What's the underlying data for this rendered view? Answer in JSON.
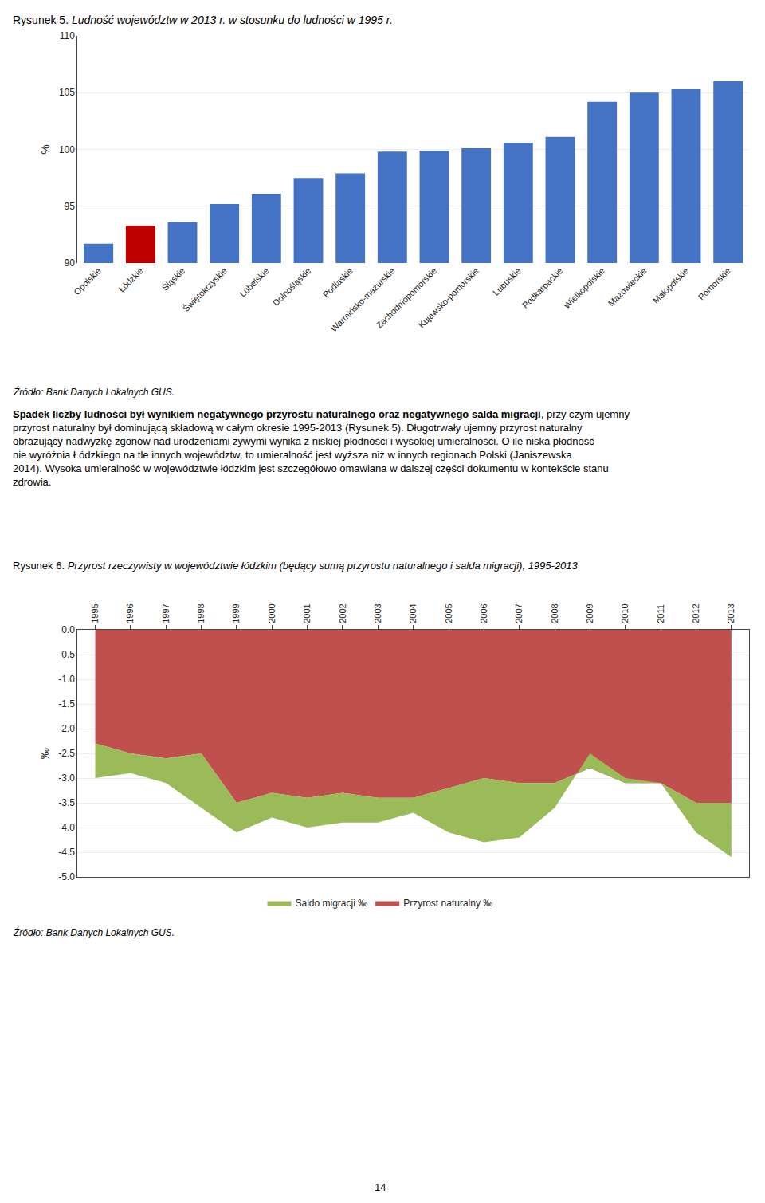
{
  "chart_data": [
    {
      "type": "bar",
      "title": "Rysunek 5. Ludność województw w 2013 r. w stosunku do ludności w 1995 r.",
      "categories": [
        "Opolskie",
        "Łódzkie",
        "Śląskie",
        "Świętokrzyskie",
        "Lubelskie",
        "Dolnośląskie",
        "Podlaskie",
        "Warmińsko-mazurskie",
        "Zachodniopomorskie",
        "Kujawsko-pomorskie",
        "Lubuskie",
        "Podkarpackie",
        "Wielkopolskie",
        "Mazowieckie",
        "Małopolskie",
        "Pomorskie"
      ],
      "values": [
        91.7,
        93.3,
        93.6,
        95.2,
        96.1,
        97.5,
        97.9,
        99.8,
        99.9,
        100.1,
        100.6,
        101.1,
        104.2,
        105.0,
        105.3,
        106.0
      ],
      "colors": [
        "#4472C4",
        "#C00000",
        "#4472C4",
        "#4472C4",
        "#4472C4",
        "#4472C4",
        "#4472C4",
        "#4472C4",
        "#4472C4",
        "#4472C4",
        "#4472C4",
        "#4472C4",
        "#4472C4",
        "#4472C4",
        "#4472C4",
        "#4472C4"
      ],
      "ylabel": "%",
      "ylim": [
        90,
        110
      ],
      "yticks": [
        90,
        95,
        100,
        105,
        110
      ],
      "grid": true,
      "annotations": [
        "Źródło: Bank Danych Lokalnych GUS.",
        "Spadek liczby ludności był wynikiem negatywnego przyrostu naturalnego oraz negatywnego salda migracji",
        ", przy czym ujemny przyrost naturalny był dominującą składową w całym okresie 1995-2013 (Rysunek 5). Długotrwały ujemny przyrost naturalny obrazujący nadwyżkę zgonów nad urodzeniami żywymi wynika z niskiej płodności i wysokiej umieralności. O ile niska płodność nie wyróżnia Łódzkiego na tle innych województw, to umieralność jest wyższa niż w innych regionach Polski (Janiszewska 2014). Wysoka umieralność w województwie łódzkim jest szczegółowo omawiana w dalszej części dokumentu w kontekście stanu zdrowia."
      ]
    },
    {
      "type": "area",
      "title": "Rysunek 6. Przyrost rzeczywisty w województwie łódzkim (będący sumą przyrostu naturalnego i salda migracji), 1995-2013",
      "x": [
        1995,
        1996,
        1997,
        1998,
        1999,
        2000,
        2001,
        2002,
        2003,
        2004,
        2005,
        2006,
        2007,
        2008,
        2009,
        2010,
        2011,
        2012,
        2013
      ],
      "series": [
        {
          "name": "Przyrost naturalny ‰",
          "color": "#C0504D",
          "values": [
            -2.3,
            -2.5,
            -2.6,
            -2.5,
            -3.5,
            -3.3,
            -3.4,
            -3.3,
            -3.4,
            -3.4,
            -3.2,
            -3.0,
            -3.1,
            -3.1,
            -2.8,
            -3.1,
            -3.1,
            -3.5,
            -3.5
          ]
        },
        {
          "name": "Saldo migracji ‰",
          "color": "#9BBB59",
          "values": [
            -3.0,
            -2.9,
            -3.1,
            -3.6,
            -4.1,
            -3.8,
            -4.0,
            -3.9,
            -3.9,
            -3.7,
            -4.1,
            -4.3,
            -4.2,
            -3.6,
            -2.5,
            -3.0,
            -3.1,
            -4.1,
            -4.6
          ]
        }
      ],
      "ylabel": "‰",
      "xlim": [
        1994.5,
        2013.5
      ],
      "xticks": [
        1995,
        1996,
        1997,
        1998,
        1999,
        2000,
        2001,
        2002,
        2003,
        2004,
        2005,
        2006,
        2007,
        2008,
        2009,
        2010,
        2011,
        2012,
        2013
      ],
      "ylim": [
        -5.0,
        0.0
      ],
      "yticks": [
        {
          "value": 0,
          "label": "0.0"
        },
        -0.5,
        {
          "value": -1,
          "label": "-1.0"
        },
        -1.5,
        {
          "value": -2,
          "label": "-2.0"
        },
        -2.5,
        {
          "value": -3,
          "label": "-3.0"
        },
        -3.5,
        {
          "value": -4,
          "label": "-4.0"
        },
        -4.5,
        {
          "value": -5,
          "label": "-5.0"
        }
      ],
      "grid": true,
      "legend": "bottom",
      "annotations": [
        "Źródło: Bank Danych Lokalnych GUS.",
        "14"
      ]
    }
  ]
}
